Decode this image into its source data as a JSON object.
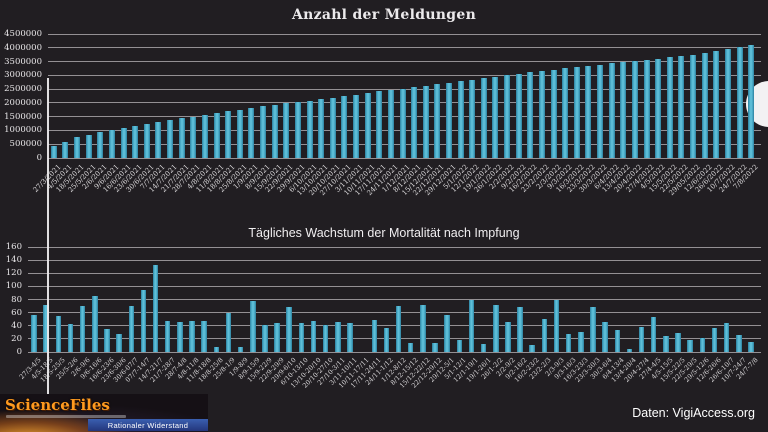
{
  "page": {
    "background_color": "#211e22",
    "bar_color": "#4bacc6",
    "grid_color": "#a8a5a8",
    "text_color": "#eceaec"
  },
  "footer": {
    "source_label": "Daten: VigiAccess.org"
  },
  "logo": {
    "title": "ScienceFiles",
    "banner": "Rationaler Widerstand"
  },
  "chart_data": [
    {
      "id": "reports-total",
      "type": "bar",
      "title": "Anzahl der Meldungen",
      "xlabel": "",
      "ylabel": "",
      "ylim": [
        0,
        4500000
      ],
      "ytick_step": 500000,
      "grid": true,
      "legend": "none",
      "categories": [
        "27/3/2021",
        "4/5/2021",
        "18/5/2021",
        "25/5/2021",
        "2/6/2021",
        "9/6/2021",
        "16/6/2021",
        "23/6/2021",
        "30/6/2021",
        "7/7/2021",
        "14/7/2021",
        "21/7/2021",
        "28/7/2021",
        "4/8/2021",
        "11/8/2021",
        "18/8/2021",
        "25/8/2021",
        "1/9/2021",
        "8/9/2021",
        "15/9/2021",
        "22/9/2021",
        "29/9/2021",
        "6/10/2021",
        "13/10/2021",
        "20/10/2021",
        "27/10/2021",
        "3/11/2021",
        "10/11/2021",
        "17/11/2021",
        "24/11/2021",
        "1/12/2021",
        "8/12/2021",
        "15/12/2021",
        "22/12/2021",
        "29/12/2021",
        "5/1/2022",
        "12/1/2022",
        "19/1/2022",
        "26/1/2022",
        "2/2/2022",
        "9/2/2022",
        "16/2/2022",
        "23/2/2022",
        "2/3/2022",
        "9/3/2022",
        "16/3/2022",
        "23/3/2022",
        "30/3/2022",
        "6/4/2022",
        "13/4/2022",
        "20/4/2022",
        "27/4/2022",
        "4/5/2022",
        "15/5/2022",
        "22/5/2022",
        "29/05/2022",
        "12/6/2022",
        "26/6/2022",
        "10/7/2022",
        "24/7/2022",
        "7/8/2022"
      ],
      "values": [
        430000,
        570000,
        750000,
        830000,
        930000,
        1010000,
        1080000,
        1170000,
        1240000,
        1310000,
        1380000,
        1440000,
        1500000,
        1570000,
        1640000,
        1700000,
        1760000,
        1820000,
        1880000,
        1930000,
        1990000,
        2040000,
        2080000,
        2140000,
        2190000,
        2250000,
        2300000,
        2360000,
        2420000,
        2460000,
        2520000,
        2570000,
        2630000,
        2680000,
        2740000,
        2790000,
        2840000,
        2900000,
        2950000,
        3000000,
        3060000,
        3110000,
        3150000,
        3200000,
        3250000,
        3300000,
        3340000,
        3390000,
        3440000,
        3480000,
        3520000,
        3560000,
        3610000,
        3650000,
        3700000,
        3750000,
        3810000,
        3870000,
        3940000,
        4020000,
        4110000
      ]
    },
    {
      "id": "daily-mortality-growth",
      "type": "bar",
      "title": "Tägliches Wachstum der Mortalität nach Impfung",
      "xlabel": "",
      "ylabel": "",
      "ylim": [
        0,
        160
      ],
      "ytick_step": 20,
      "grid": true,
      "legend": "none",
      "categories": [
        "27/3-4/5",
        "4/5-18/5",
        "18/5-25/5",
        "25/5-2/6",
        "2/6-9/6",
        "9/6-16/6",
        "16/6-23/6",
        "23/6-30/6",
        "30/6-07/7",
        "07/7-14/7",
        "14/7-21/7",
        "21/7-28/7",
        "28/7-4/8",
        "4/8-11/8",
        "11/8-18/8",
        "18/8-25/8",
        "25/8-1/9",
        "1/9-8/9",
        "8/9-15/9",
        "15/9-22/9",
        "22/9-29/9",
        "29/9-6/10",
        "6/10-13/10",
        "13/10-20/10",
        "20/10-27/10",
        "27/10-3/11",
        "3/11-10/11",
        "10/11-17/11",
        "17/11-24/11",
        "24/11-1/12",
        "1/12-8/12",
        "8/12-15/12",
        "15/12-22/12",
        "22/12-29/12",
        "29/12-5/1",
        "5/1-12/1",
        "12/1-19/1",
        "19/1-26/1",
        "26/1-2/2",
        "2/2-9/2",
        "9/2-16/2",
        "16/2-23/2",
        "23/2-2/3",
        "2/3-9/3",
        "9/3-16/3",
        "16/3-23/3",
        "23/3-30/3",
        "30/3-6/4",
        "6/4-13/4",
        "13/4-20/4",
        "20/4-27/4",
        "27/4-4/5",
        "4/5-15/5",
        "15/5-22/5",
        "22/5-29/5",
        "29/5-12/6",
        "12/6-26/6",
        "26/6-10/7",
        "10/7-24/7",
        "24/7-7/8"
      ],
      "values": [
        57,
        72,
        55,
        42,
        70,
        85,
        35,
        28,
        70,
        95,
        133,
        47,
        46,
        48,
        48,
        8,
        60,
        7,
        78,
        41,
        44,
        68,
        44,
        48,
        41,
        46,
        44,
        0,
        49,
        37,
        70,
        14,
        71,
        13,
        57,
        18,
        79,
        12,
        72,
        46,
        69,
        10,
        51,
        79,
        28,
        31,
        69,
        45,
        33,
        5,
        38,
        54,
        25,
        29,
        19,
        21,
        36,
        44,
        26,
        15
      ]
    }
  ]
}
